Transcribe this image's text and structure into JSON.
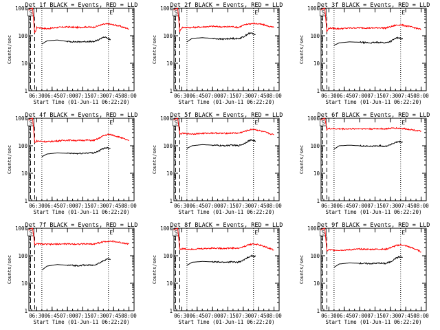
{
  "chart_data": [
    {
      "type": "line",
      "title": "Det 1f BLACK = Events, RED = LLD",
      "ylabel": "Counts/sec",
      "xlabel": "Start Time (01-Jun-11 06:22:20)",
      "x_ticks": [
        "06:30",
        "06:45",
        "07:00",
        "07:15",
        "07:30",
        "07:45",
        "08:00"
      ],
      "y_ticks": [
        "1",
        "10",
        "100",
        "1000"
      ],
      "ylim": [
        1,
        1000
      ],
      "y_scale": "log",
      "markers": [
        {
          "label": "S"
        },
        {
          "label": "E"
        }
      ],
      "series": [
        {
          "color": "#ff0000",
          "x": [
            "06:22",
            "06:24",
            "06:26",
            "06:28",
            "06:30",
            "06:35",
            "06:40",
            "06:50",
            "07:00",
            "07:10",
            "07:20",
            "07:25",
            "07:30",
            "07:35",
            "07:40",
            "07:45",
            "07:50",
            "07:55",
            "08:00"
          ],
          "values": [
            850,
            950,
            1000,
            120,
            200,
            190,
            180,
            200,
            210,
            200,
            210,
            200,
            230,
            260,
            270,
            250,
            230,
            200,
            180
          ]
        },
        {
          "color": "#000000",
          "x": [
            "06:35",
            "06:40",
            "06:50",
            "07:00",
            "07:10",
            "07:20",
            "07:25",
            "07:30",
            "07:35",
            "07:38",
            "07:42"
          ],
          "values": [
            50,
            65,
            70,
            62,
            60,
            62,
            60,
            70,
            90,
            85,
            70
          ]
        }
      ]
    },
    {
      "type": "line",
      "title": "Det 2f BLACK = Events, RED = LLD",
      "ylabel": "Counts/sec",
      "xlabel": "Start Time (01-Jun-11 06:22:20)",
      "x_ticks": [
        "06:30",
        "06:45",
        "07:00",
        "07:15",
        "07:30",
        "07:45",
        "08:00"
      ],
      "y_ticks": [
        "1",
        "10",
        "100",
        "1000"
      ],
      "ylim": [
        1,
        1000
      ],
      "y_scale": "log",
      "markers": [
        {
          "label": "S"
        },
        {
          "label": "E"
        }
      ],
      "series": [
        {
          "color": "#ff0000",
          "x": [
            "06:22",
            "06:24",
            "06:26",
            "06:28",
            "06:30",
            "06:35",
            "06:40",
            "06:50",
            "07:00",
            "07:10",
            "07:20",
            "07:25",
            "07:30",
            "07:35",
            "07:40",
            "07:45",
            "07:50",
            "07:55",
            "08:00"
          ],
          "values": [
            850,
            950,
            1000,
            140,
            200,
            200,
            200,
            210,
            220,
            210,
            215,
            200,
            240,
            270,
            280,
            270,
            250,
            220,
            200
          ]
        },
        {
          "color": "#000000",
          "x": [
            "06:35",
            "06:40",
            "06:50",
            "07:00",
            "07:10",
            "07:20",
            "07:25",
            "07:30",
            "07:35",
            "07:38",
            "07:42"
          ],
          "values": [
            60,
            80,
            85,
            80,
            75,
            80,
            78,
            90,
            120,
            125,
            110
          ]
        }
      ]
    },
    {
      "type": "line",
      "title": "Det 3f BLACK = Events, RED = LLD",
      "ylabel": "Counts/sec",
      "xlabel": "Start Time (01-Jun-11 06:22:20)",
      "x_ticks": [
        "06:30",
        "06:45",
        "07:00",
        "07:15",
        "07:30",
        "07:45",
        "08:00"
      ],
      "y_ticks": [
        "1",
        "10",
        "100",
        "1000"
      ],
      "ylim": [
        1,
        1000
      ],
      "y_scale": "log",
      "markers": [
        {
          "label": "S"
        },
        {
          "label": "E"
        }
      ],
      "series": [
        {
          "color": "#ff0000",
          "x": [
            "06:22",
            "06:24",
            "06:26",
            "06:28",
            "06:30",
            "06:35",
            "06:40",
            "06:50",
            "07:00",
            "07:10",
            "07:20",
            "07:25",
            "07:30",
            "07:35",
            "07:40",
            "07:45",
            "07:50",
            "07:55",
            "08:00"
          ],
          "values": [
            850,
            950,
            1000,
            140,
            190,
            185,
            180,
            190,
            195,
            190,
            195,
            190,
            210,
            240,
            250,
            230,
            210,
            190,
            170
          ]
        },
        {
          "color": "#000000",
          "x": [
            "06:35",
            "06:40",
            "06:50",
            "07:00",
            "07:10",
            "07:20",
            "07:25",
            "07:30",
            "07:35",
            "07:38",
            "07:42"
          ],
          "values": [
            45,
            55,
            60,
            58,
            55,
            58,
            55,
            62,
            80,
            85,
            75
          ]
        }
      ]
    },
    {
      "type": "line",
      "title": "Det 4f BLACK = Events, RED = LLD",
      "ylabel": "Counts/sec",
      "xlabel": "Start Time (01-Jun-11 06:22:20)",
      "x_ticks": [
        "06:30",
        "06:45",
        "07:00",
        "07:15",
        "07:30",
        "07:45",
        "08:00"
      ],
      "y_ticks": [
        "1",
        "10",
        "100",
        "1000"
      ],
      "ylim": [
        1,
        1000
      ],
      "y_scale": "log",
      "markers": [
        {
          "label": "S"
        },
        {
          "label": "E"
        }
      ],
      "series": [
        {
          "color": "#ff0000",
          "x": [
            "06:22",
            "06:24",
            "06:26",
            "06:28",
            "06:30",
            "06:35",
            "06:40",
            "06:50",
            "07:00",
            "07:10",
            "07:20",
            "07:25",
            "07:30",
            "07:35",
            "07:40",
            "07:45",
            "07:50",
            "07:55",
            "08:00"
          ],
          "values": [
            850,
            950,
            1000,
            130,
            150,
            145,
            140,
            150,
            160,
            155,
            160,
            155,
            180,
            230,
            260,
            240,
            210,
            180,
            150
          ]
        },
        {
          "color": "#000000",
          "x": [
            "06:35",
            "06:40",
            "06:50",
            "07:00",
            "07:10",
            "07:20",
            "07:25",
            "07:30",
            "07:35",
            "07:38",
            "07:42"
          ],
          "values": [
            40,
            50,
            55,
            53,
            52,
            55,
            55,
            62,
            80,
            85,
            80
          ]
        }
      ]
    },
    {
      "type": "line",
      "title": "Det 5f BLACK = Events, RED = LLD",
      "ylabel": "Counts/sec",
      "xlabel": "Start Time (01-Jun-11 06:22:20)",
      "x_ticks": [
        "06:30",
        "06:45",
        "07:00",
        "07:15",
        "07:30",
        "07:45",
        "08:00"
      ],
      "y_ticks": [
        "1",
        "10",
        "100",
        "1000"
      ],
      "ylim": [
        1,
        1000
      ],
      "y_scale": "log",
      "markers": [
        {
          "label": "S"
        },
        {
          "label": "E"
        }
      ],
      "series": [
        {
          "color": "#ff0000",
          "x": [
            "06:22",
            "06:24",
            "06:26",
            "06:28",
            "06:30",
            "06:35",
            "06:40",
            "06:50",
            "07:00",
            "07:10",
            "07:20",
            "07:25",
            "07:30",
            "07:35",
            "07:40",
            "07:45",
            "07:50",
            "07:55",
            "08:00"
          ],
          "values": [
            850,
            950,
            1000,
            260,
            280,
            275,
            270,
            280,
            290,
            280,
            290,
            285,
            320,
            370,
            400,
            360,
            320,
            280,
            250
          ]
        },
        {
          "color": "#000000",
          "x": [
            "06:35",
            "06:40",
            "06:50",
            "07:00",
            "07:10",
            "07:20",
            "07:25",
            "07:30",
            "07:35",
            "07:38",
            "07:42"
          ],
          "values": [
            80,
            100,
            110,
            105,
            100,
            105,
            100,
            115,
            150,
            160,
            150
          ]
        }
      ]
    },
    {
      "type": "line",
      "title": "Det 6f BLACK = Events, RED = LLD",
      "ylabel": "Counts/sec",
      "xlabel": "Start Time (01-Jun-11 06:22:20)",
      "x_ticks": [
        "06:30",
        "06:45",
        "07:00",
        "07:15",
        "07:30",
        "07:45",
        "08:00"
      ],
      "y_ticks": [
        "1",
        "10",
        "100",
        "1000"
      ],
      "ylim": [
        1,
        1000
      ],
      "y_scale": "log",
      "markers": [
        {
          "label": "S"
        },
        {
          "label": "E"
        }
      ],
      "series": [
        {
          "color": "#ff0000",
          "x": [
            "06:22",
            "06:24",
            "06:26",
            "06:28",
            "06:30",
            "06:35",
            "06:40",
            "06:50",
            "07:00",
            "07:10",
            "07:20",
            "07:25",
            "07:30",
            "07:35",
            "07:40",
            "07:45",
            "07:50",
            "07:55",
            "08:00"
          ],
          "values": [
            850,
            950,
            1000,
            400,
            420,
            415,
            410,
            410,
            420,
            410,
            420,
            410,
            430,
            440,
            430,
            410,
            390,
            360,
            340
          ]
        },
        {
          "color": "#000000",
          "x": [
            "06:35",
            "06:40",
            "06:50",
            "07:00",
            "07:10",
            "07:20",
            "07:25",
            "07:30",
            "07:35",
            "07:38",
            "07:42"
          ],
          "values": [
            75,
            100,
            105,
            100,
            95,
            100,
            95,
            110,
            130,
            140,
            135
          ]
        }
      ]
    },
    {
      "type": "line",
      "title": "Det 7f BLACK = Events, RED = LLD",
      "ylabel": "Counts/sec",
      "xlabel": "Start Time (01-Jun-11 06:22:20)",
      "x_ticks": [
        "06:30",
        "06:45",
        "07:00",
        "07:15",
        "07:30",
        "07:45",
        "08:00"
      ],
      "y_ticks": [
        "1",
        "10",
        "100",
        "1000"
      ],
      "ylim": [
        1,
        1000
      ],
      "y_scale": "log",
      "markers": [
        {
          "label": "S"
        },
        {
          "label": "E"
        }
      ],
      "series": [
        {
          "color": "#ff0000",
          "x": [
            "06:22",
            "06:24",
            "06:26",
            "06:28",
            "06:30",
            "06:35",
            "06:40",
            "06:50",
            "07:00",
            "07:10",
            "07:20",
            "07:25",
            "07:30",
            "07:35",
            "07:40",
            "07:45",
            "07:50",
            "07:55",
            "08:00"
          ],
          "values": [
            850,
            950,
            1000,
            260,
            270,
            265,
            260,
            265,
            270,
            265,
            270,
            265,
            290,
            320,
            340,
            330,
            310,
            290,
            270
          ]
        },
        {
          "color": "#000000",
          "x": [
            "06:35",
            "06:40",
            "06:50",
            "07:00",
            "07:10",
            "07:20",
            "07:25",
            "07:30",
            "07:35",
            "07:38",
            "07:42"
          ],
          "values": [
            30,
            42,
            48,
            45,
            44,
            46,
            45,
            52,
            65,
            75,
            75
          ]
        }
      ]
    },
    {
      "type": "line",
      "title": "Det 8f BLACK = Events, RED = LLD",
      "ylabel": "Counts/sec",
      "xlabel": "Start Time (01-Jun-11 06:22:20)",
      "x_ticks": [
        "06:30",
        "06:45",
        "07:00",
        "07:15",
        "07:30",
        "07:45",
        "08:00"
      ],
      "y_ticks": [
        "1",
        "10",
        "100",
        "1000"
      ],
      "ylim": [
        1,
        1000
      ],
      "y_scale": "log",
      "markers": [
        {
          "label": "S"
        },
        {
          "label": "E"
        }
      ],
      "series": [
        {
          "color": "#ff0000",
          "x": [
            "06:22",
            "06:24",
            "06:26",
            "06:28",
            "06:30",
            "06:35",
            "06:40",
            "06:50",
            "07:00",
            "07:10",
            "07:20",
            "07:25",
            "07:30",
            "07:35",
            "07:40",
            "07:45",
            "07:50",
            "07:55",
            "08:00"
          ],
          "values": [
            850,
            950,
            1000,
            170,
            180,
            175,
            175,
            180,
            190,
            185,
            190,
            185,
            210,
            250,
            270,
            250,
            220,
            190,
            160
          ]
        },
        {
          "color": "#000000",
          "x": [
            "06:35",
            "06:40",
            "06:50",
            "07:00",
            "07:10",
            "07:20",
            "07:25",
            "07:30",
            "07:35",
            "07:38",
            "07:42"
          ],
          "values": [
            45,
            58,
            62,
            60,
            58,
            60,
            58,
            68,
            90,
            100,
            95
          ]
        }
      ]
    },
    {
      "type": "line",
      "title": "Det 9f BLACK = Events, RED = LLD",
      "ylabel": "Counts/sec",
      "xlabel": "Start Time (01-Jun-11 06:22:20)",
      "x_ticks": [
        "06:30",
        "06:45",
        "07:00",
        "07:15",
        "07:30",
        "07:45",
        "08:00"
      ],
      "y_ticks": [
        "1",
        "10",
        "100",
        "1000"
      ],
      "ylim": [
        1,
        1000
      ],
      "y_scale": "log",
      "markers": [
        {
          "label": "S"
        },
        {
          "label": "E"
        }
      ],
      "series": [
        {
          "color": "#ff0000",
          "x": [
            "06:22",
            "06:24",
            "06:26",
            "06:28",
            "06:30",
            "06:35",
            "06:40",
            "06:50",
            "07:00",
            "07:10",
            "07:20",
            "07:25",
            "07:30",
            "07:35",
            "07:40",
            "07:45",
            "07:50",
            "07:55",
            "08:00"
          ],
          "values": [
            850,
            950,
            1000,
            150,
            165,
            160,
            160,
            165,
            175,
            170,
            175,
            170,
            195,
            230,
            250,
            230,
            200,
            170,
            140
          ]
        },
        {
          "color": "#000000",
          "x": [
            "06:35",
            "06:40",
            "06:50",
            "07:00",
            "07:10",
            "07:20",
            "07:25",
            "07:30",
            "07:35",
            "07:38",
            "07:42"
          ],
          "values": [
            38,
            50,
            55,
            53,
            52,
            54,
            52,
            60,
            80,
            90,
            88
          ]
        }
      ]
    }
  ]
}
